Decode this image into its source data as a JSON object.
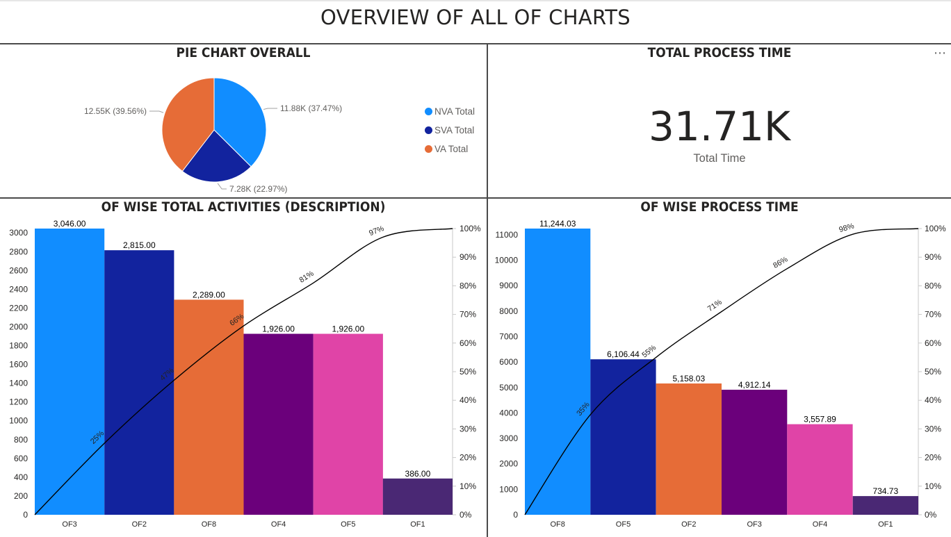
{
  "page": {
    "title": "OVERVIEW OF ALL OF CHARTS"
  },
  "pie_panel": {
    "title": "PIE CHART OVERALL",
    "legend": [
      {
        "label": "NVA Total",
        "color": "#118DFF"
      },
      {
        "label": "SVA Total",
        "color": "#12239E"
      },
      {
        "label": "VA Total",
        "color": "#E66C37"
      }
    ]
  },
  "card_panel": {
    "title": "TOTAL PROCESS TIME",
    "value": "31.71K",
    "label": "Total Time",
    "more_icon": "more-options-icon"
  },
  "activities_panel": {
    "title": "OF WISE TOTAL ACTIVITIES (DESCRIPTION)"
  },
  "process_panel": {
    "title": "OF WISE PROCESS TIME"
  },
  "chart_data": [
    {
      "type": "pie",
      "title": "PIE CHART OVERALL",
      "slices": [
        {
          "name": "NVA Total",
          "value": 11880,
          "label": "11.88K (37.47%)",
          "color": "#118DFF"
        },
        {
          "name": "SVA Total",
          "value": 7280,
          "label": "7.28K (22.97%)",
          "color": "#12239E"
        },
        {
          "name": "VA Total",
          "value": 12550,
          "label": "12.55K (39.56%)",
          "color": "#E66C37"
        }
      ]
    },
    {
      "type": "bar",
      "title": "OF WISE TOTAL ACTIVITIES (DESCRIPTION)",
      "categories": [
        "OF3",
        "OF2",
        "OF8",
        "OF4",
        "OF5",
        "OF1"
      ],
      "values": [
        3046,
        2815,
        2289,
        1926,
        1926,
        386
      ],
      "value_labels": [
        "3,046.00",
        "2,815.00",
        "2,289.00",
        "1,926.00",
        "1,926.00",
        "386.00"
      ],
      "colors": [
        "#118DFF",
        "#12239E",
        "#E66C37",
        "#6B007B",
        "#E044A7",
        "#4A2874"
      ],
      "ylim": [
        0,
        3046
      ],
      "yticks": [
        0,
        200,
        400,
        600,
        800,
        1000,
        1200,
        1400,
        1600,
        1800,
        2000,
        2200,
        2400,
        2600,
        2800,
        3000
      ],
      "y2ticks": [
        "0%",
        "10%",
        "20%",
        "30%",
        "40%",
        "50%",
        "60%",
        "70%",
        "80%",
        "90%",
        "100%"
      ],
      "cumulative": [
        25,
        47,
        66,
        81,
        97
      ],
      "cumulative_labels": [
        "25%",
        "47%",
        "66%",
        "81%",
        "97%"
      ]
    },
    {
      "type": "bar",
      "title": "OF WISE PROCESS TIME",
      "categories": [
        "OF8",
        "OF5",
        "OF2",
        "OF3",
        "OF4",
        "OF1"
      ],
      "values": [
        11244.03,
        6106.44,
        5158.03,
        4912.14,
        3557.89,
        734.73
      ],
      "value_labels": [
        "11,244.03",
        "6,106.44",
        "5,158.03",
        "4,912.14",
        "3,557.89",
        "734.73"
      ],
      "colors": [
        "#118DFF",
        "#12239E",
        "#E66C37",
        "#6B007B",
        "#E044A7",
        "#4A2874"
      ],
      "ylim": [
        0,
        11244.03
      ],
      "yticks": [
        0,
        1000,
        2000,
        3000,
        4000,
        5000,
        6000,
        7000,
        8000,
        9000,
        10000,
        11000
      ],
      "y2ticks": [
        "0%",
        "10%",
        "20%",
        "30%",
        "40%",
        "50%",
        "60%",
        "70%",
        "80%",
        "90%",
        "100%"
      ],
      "cumulative": [
        35,
        55,
        71,
        86,
        98
      ],
      "cumulative_labels": [
        "35%",
        "55%",
        "71%",
        "86%",
        "98%"
      ]
    }
  ]
}
